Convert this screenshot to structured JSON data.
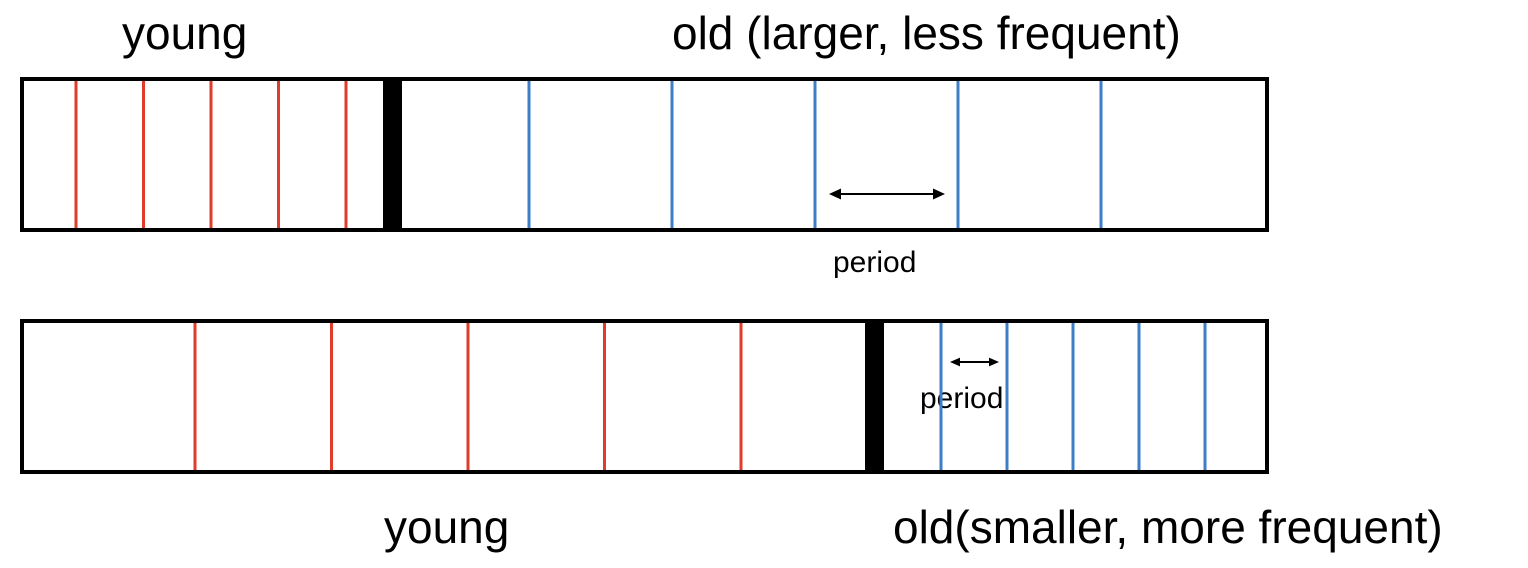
{
  "top_row": {
    "young_label": "young",
    "old_label": "old (larger, less frequent)",
    "period_label": "period",
    "young_line_count": 5,
    "old_line_count": 5
  },
  "bottom_row": {
    "young_label": "young",
    "old_label": "old(smaller, more frequent)",
    "period_label": "period",
    "young_line_count": 5,
    "old_line_count": 5
  },
  "colors": {
    "young_line": "#e03c2b",
    "old_line": "#3d7fc6",
    "frame": "#000000",
    "divider": "#000000"
  }
}
